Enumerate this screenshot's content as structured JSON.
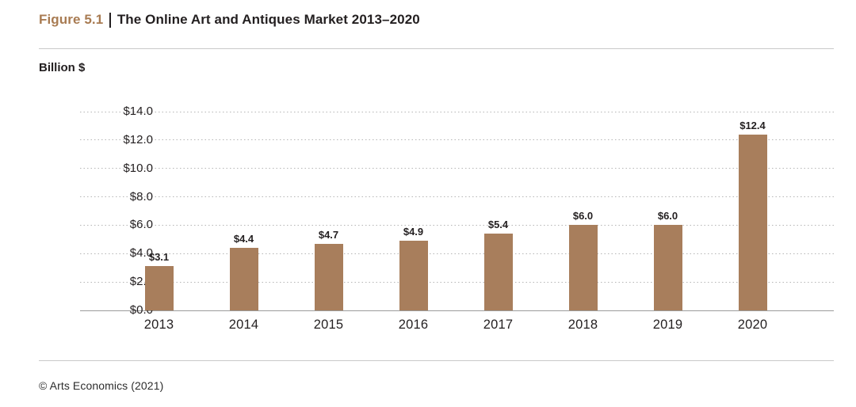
{
  "title": {
    "figure_label": "Figure 5.1",
    "text": "The Online Art and Antiques Market 2013–2020"
  },
  "y_axis_title": "Billion $",
  "footer": "© Arts Economics (2021)",
  "colors": {
    "bar": "#a87e5c",
    "figure_label": "#a87b52",
    "title_text": "#231f20",
    "gridline": "#b5b5b5",
    "baseline": "#9b9b9b",
    "rule": "#c9c9c9"
  },
  "chart_data": {
    "type": "bar",
    "title": "Figure 5.1 | The Online Art and Antiques Market 2013–2020",
    "categories": [
      "2013",
      "2014",
      "2015",
      "2016",
      "2017",
      "2018",
      "2019",
      "2020"
    ],
    "values": [
      3.1,
      4.4,
      4.7,
      4.9,
      5.4,
      6.0,
      6.0,
      12.4
    ],
    "data_labels": [
      "$3.1",
      "$4.4",
      "$4.7",
      "$4.9",
      "$5.4",
      "$6.0",
      "$6.0",
      "$12.4"
    ],
    "xlabel": "",
    "ylabel": "Billion $",
    "ylim": [
      0,
      14
    ],
    "ytick_step": 2,
    "yticks": [
      {
        "value": 0,
        "label": "$0.0"
      },
      {
        "value": 2,
        "label": "$2.0"
      },
      {
        "value": 4,
        "label": "$4.0"
      },
      {
        "value": 6,
        "label": "$6.0"
      },
      {
        "value": 8,
        "label": "$8.0"
      },
      {
        "value": 10,
        "label": "$10.0"
      },
      {
        "value": 12,
        "label": "$12.0"
      },
      {
        "value": 14,
        "label": "$14.0"
      }
    ],
    "grid": "horizontal-dotted",
    "legend": "none",
    "bar_color": "#a87e5c"
  }
}
